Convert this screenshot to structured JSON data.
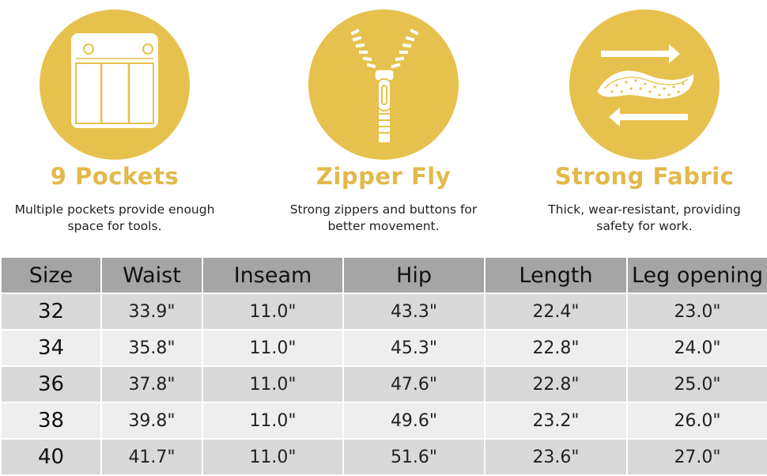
{
  "features": [
    {
      "icon": "pockets-icon",
      "title": "9 Pockets",
      "desc_line1": "Multiple pockets provide enough",
      "desc_line2": "space for tools."
    },
    {
      "icon": "zipper-icon",
      "title": "Zipper Fly",
      "desc_line1": "Strong zippers and buttons for",
      "desc_line2": "better movement."
    },
    {
      "icon": "fabric-icon",
      "title": "Strong Fabric",
      "desc_line1": "Thick, wear-resistant, providing",
      "desc_line2": "safety for work."
    }
  ],
  "colors": {
    "accent": "#e7c14e",
    "title": "#e2b94a",
    "header_bg": "#a5a5a5",
    "row_dark": "#d9d9d9",
    "row_light": "#eeeeee"
  },
  "table": {
    "headers": [
      "Size",
      "Waist",
      "Inseam",
      "Hip",
      "Length",
      "Leg opening"
    ],
    "rows": [
      [
        "32",
        "33.9\"",
        "11.0\"",
        "43.3\"",
        "22.4\"",
        "23.0\""
      ],
      [
        "34",
        "35.8\"",
        "11.0\"",
        "45.3\"",
        "22.8\"",
        "24.0\""
      ],
      [
        "36",
        "37.8\"",
        "11.0\"",
        "47.6\"",
        "22.8\"",
        "25.0\""
      ],
      [
        "38",
        "39.8\"",
        "11.0\"",
        "49.6\"",
        "23.2\"",
        "26.0\""
      ],
      [
        "40",
        "41.7\"",
        "11.0\"",
        "51.6\"",
        "23.6\"",
        "27.0\""
      ]
    ]
  }
}
